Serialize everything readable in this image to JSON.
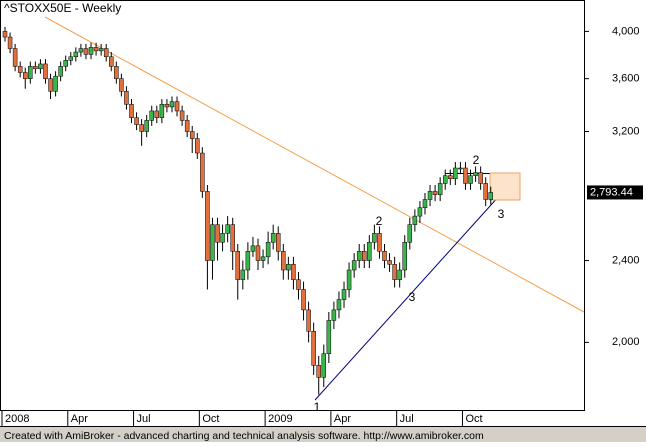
{
  "chart_data": {
    "type": "candlestick",
    "title": "^STOXX50E - Weekly",
    "footer": "Created with AmiBroker - advanced charting and technical analysis software. http://www.amibroker.com",
    "log_scale": true,
    "up_color": "#3cb44b",
    "down_color": "#e0703f",
    "ylim": [
      1720,
      4290
    ],
    "yticks": [
      {
        "value": 2000,
        "label": "2,000"
      },
      {
        "value": 2400,
        "label": "2,400"
      },
      {
        "value": 3200,
        "label": "3,200"
      },
      {
        "value": 3600,
        "label": "3,600"
      },
      {
        "value": 4000,
        "label": "4,000"
      }
    ],
    "last_value_label": "2,793.44",
    "annotations": [
      "1",
      "2",
      "3",
      "2",
      "3"
    ],
    "categories": [
      "2008",
      null,
      null,
      null,
      null,
      null,
      null,
      null,
      null,
      null,
      null,
      null,
      null,
      "Apr",
      null,
      null,
      null,
      null,
      null,
      null,
      null,
      null,
      null,
      null,
      null,
      null,
      "Jul",
      null,
      null,
      null,
      null,
      null,
      null,
      null,
      null,
      null,
      null,
      null,
      null,
      "Oct",
      null,
      null,
      null,
      null,
      null,
      null,
      null,
      null,
      null,
      null,
      null,
      null,
      "2009",
      null,
      null,
      null,
      null,
      null,
      null,
      null,
      null,
      null,
      null,
      null,
      null,
      "Apr",
      null,
      null,
      null,
      null,
      null,
      null,
      null,
      null,
      null,
      null,
      null,
      null,
      "Jul",
      null,
      null,
      null,
      null,
      null,
      null,
      null,
      null,
      null,
      null,
      null,
      null,
      "Oct",
      null,
      null,
      null,
      null,
      null
    ],
    "open": [
      4000,
      3950,
      3850,
      3700,
      3650,
      3600,
      3700,
      3680,
      3720,
      3600,
      3500,
      3620,
      3700,
      3750,
      3780,
      3820,
      3850,
      3800,
      3860,
      3830,
      3850,
      3780,
      3700,
      3600,
      3500,
      3400,
      3300,
      3250,
      3200,
      3280,
      3350,
      3300,
      3400,
      3380,
      3420,
      3350,
      3280,
      3200,
      3150,
      3050,
      2800,
      2400,
      2600,
      2500,
      2550,
      2600,
      2450,
      2300,
      2350,
      2450,
      2480,
      2400,
      2420,
      2500,
      2550,
      2450,
      2350,
      2380,
      2300,
      2250,
      2150,
      2050,
      1900,
      1850,
      1950,
      2100,
      2150,
      2200,
      2250,
      2350,
      2400,
      2450,
      2400,
      2500,
      2550,
      2450,
      2400,
      2380,
      2300,
      2350,
      2500,
      2600,
      2650,
      2700,
      2750,
      2800,
      2780,
      2850,
      2900,
      2880,
      2950,
      2950,
      2850,
      2900,
      2920,
      2850,
      2750
    ],
    "high": [
      4040,
      3990,
      3890,
      3740,
      3690,
      3740,
      3740,
      3760,
      3760,
      3640,
      3660,
      3740,
      3790,
      3820,
      3860,
      3890,
      3890,
      3900,
      3900,
      3890,
      3890,
      3820,
      3740,
      3640,
      3540,
      3440,
      3340,
      3290,
      3320,
      3390,
      3390,
      3440,
      3440,
      3460,
      3460,
      3390,
      3320,
      3240,
      3190,
      3090,
      2840,
      2640,
      2640,
      2600,
      2650,
      2640,
      2490,
      2400,
      2500,
      2530,
      2520,
      2460,
      2560,
      2600,
      2590,
      2490,
      2420,
      2420,
      2340,
      2290,
      2190,
      2090,
      1940,
      1990,
      2140,
      2190,
      2240,
      2290,
      2390,
      2440,
      2490,
      2490,
      2540,
      2600,
      2590,
      2490,
      2440,
      2420,
      2390,
      2540,
      2640,
      2690,
      2740,
      2790,
      2840,
      2840,
      2890,
      2940,
      2940,
      2990,
      2990,
      2990,
      2940,
      2960,
      2960,
      2890,
      2830
    ],
    "low": [
      3910,
      3810,
      3660,
      3610,
      3520,
      3560,
      3640,
      3640,
      3560,
      3440,
      3460,
      3580,
      3660,
      3710,
      3740,
      3780,
      3760,
      3760,
      3790,
      3790,
      3740,
      3660,
      3560,
      3460,
      3360,
      3260,
      3210,
      3100,
      3160,
      3240,
      3260,
      3260,
      3340,
      3340,
      3310,
      3240,
      3160,
      3050,
      3010,
      2760,
      2250,
      2300,
      2400,
      2450,
      2500,
      2350,
      2200,
      2250,
      2300,
      2420,
      2350,
      2360,
      2380,
      2460,
      2400,
      2300,
      2300,
      2250,
      2200,
      2100,
      2000,
      1860,
      1780,
      1810,
      1910,
      2060,
      2110,
      2160,
      2210,
      2310,
      2360,
      2360,
      2360,
      2460,
      2410,
      2360,
      2340,
      2260,
      2260,
      2310,
      2460,
      2560,
      2610,
      2660,
      2710,
      2740,
      2740,
      2810,
      2840,
      2840,
      2910,
      2810,
      2810,
      2860,
      2810,
      2710,
      2720
    ],
    "close": [
      3950,
      3850,
      3700,
      3650,
      3600,
      3700,
      3680,
      3720,
      3600,
      3500,
      3620,
      3700,
      3750,
      3780,
      3820,
      3850,
      3800,
      3860,
      3830,
      3850,
      3780,
      3700,
      3600,
      3500,
      3400,
      3300,
      3250,
      3200,
      3280,
      3350,
      3300,
      3400,
      3380,
      3420,
      3350,
      3280,
      3200,
      3150,
      3050,
      2800,
      2400,
      2600,
      2500,
      2550,
      2600,
      2450,
      2300,
      2350,
      2450,
      2480,
      2400,
      2420,
      2500,
      2550,
      2450,
      2350,
      2380,
      2300,
      2250,
      2150,
      2050,
      1900,
      1850,
      1950,
      2100,
      2150,
      2200,
      2250,
      2350,
      2400,
      2450,
      2400,
      2500,
      2550,
      2450,
      2400,
      2380,
      2300,
      2350,
      2500,
      2600,
      2650,
      2700,
      2750,
      2800,
      2780,
      2850,
      2900,
      2880,
      2950,
      2950,
      2850,
      2900,
      2920,
      2850,
      2750,
      2793.44
    ]
  }
}
